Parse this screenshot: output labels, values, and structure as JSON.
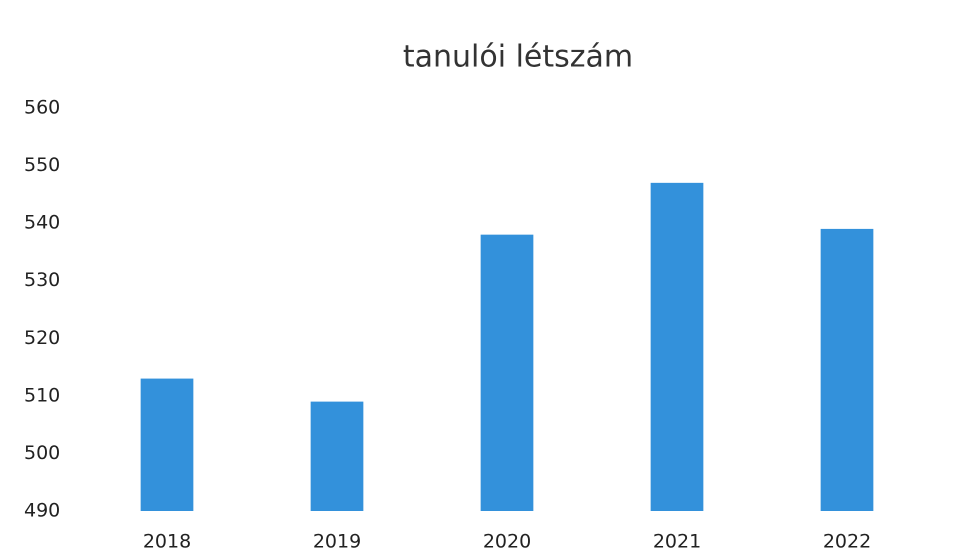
{
  "chart_data": {
    "type": "bar",
    "title": "tanulói létszám",
    "categories": [
      "2018",
      "2019",
      "2020",
      "2021",
      "2022"
    ],
    "values": [
      513,
      509,
      538,
      547,
      539
    ],
    "color": "#3391db",
    "ylim": [
      490,
      560
    ],
    "yticks": [
      490,
      500,
      510,
      520,
      530,
      540,
      550,
      560
    ],
    "grid": false
  }
}
